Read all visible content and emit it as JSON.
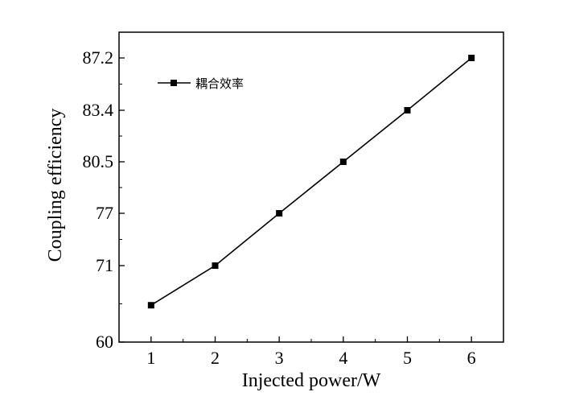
{
  "chart_data": {
    "type": "line",
    "xlabel": "Injected power/W",
    "ylabel": "Coupling efficiency",
    "x": [
      1,
      2,
      3,
      4,
      5,
      6
    ],
    "x_ticks": [
      "1",
      "2",
      "3",
      "4",
      "5",
      "6"
    ],
    "y_ticks": [
      "60",
      "71",
      "77",
      "80.5",
      "83.4",
      "87.2"
    ],
    "xlim": [
      0.5,
      6.5
    ],
    "series": [
      {
        "name": "耦合效率",
        "values": [
          65.3,
          71.0,
          77.0,
          80.5,
          83.4,
          87.2
        ]
      }
    ],
    "legend_position": "top-left",
    "grid": false,
    "colors": {
      "line": "#000000",
      "marker": "#000000"
    }
  }
}
